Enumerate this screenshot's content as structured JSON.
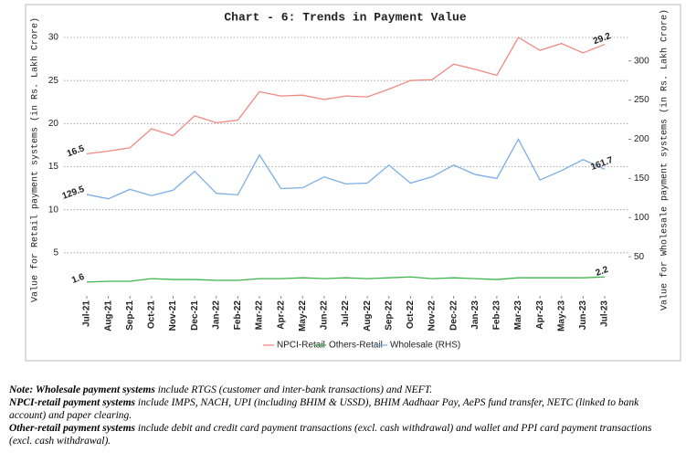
{
  "chart_data": {
    "type": "line",
    "title": "Chart - 6: Trends in Payment Value",
    "y_label": "Value for Retail payment systems (in Rs. Lakh Crore)",
    "y2_label": "Value for Wholesale payment systems (in Rs. Lakh Crore)",
    "categories": [
      "Jul-21",
      "Aug-21",
      "Sep-21",
      "Oct-21",
      "Nov-21",
      "Dec-21",
      "Jan-22",
      "Feb-22",
      "Mar-22",
      "Apr-22",
      "May-22",
      "Jun-22",
      "Jul-22",
      "Aug-22",
      "Sep-22",
      "Oct-22",
      "Nov-22",
      "Dec-22",
      "Jan-23",
      "Feb-23",
      "Mar-23",
      "Apr-23",
      "May-23",
      "Jun-23",
      "Jul-23"
    ],
    "series": [
      {
        "name": "NPCI-Retail",
        "color": "#f08a82",
        "values": [
          16.5,
          16.8,
          17.2,
          19.4,
          18.6,
          20.9,
          20.1,
          20.4,
          23.7,
          23.2,
          23.3,
          22.8,
          23.2,
          23.1,
          24.0,
          25.0,
          25.1,
          26.9,
          26.3,
          25.6,
          30.0,
          28.5,
          29.3,
          28.2,
          29.2
        ],
        "value_labels": [
          "16.5",
          null,
          null,
          null,
          null,
          null,
          null,
          null,
          null,
          null,
          null,
          null,
          null,
          null,
          null,
          null,
          null,
          null,
          null,
          null,
          null,
          null,
          null,
          null,
          "29.2"
        ]
      },
      {
        "name": "Others-Retail",
        "color": "#3cb64a",
        "values": [
          1.6,
          1.7,
          1.7,
          2.0,
          1.9,
          1.9,
          1.8,
          1.8,
          2.0,
          2.0,
          2.1,
          2.0,
          2.1,
          2.0,
          2.1,
          2.2,
          2.0,
          2.1,
          2.0,
          1.9,
          2.1,
          2.1,
          2.1,
          2.1,
          2.2
        ],
        "value_labels": [
          "1.6",
          null,
          null,
          null,
          null,
          null,
          null,
          null,
          null,
          null,
          null,
          null,
          null,
          null,
          null,
          null,
          null,
          null,
          null,
          null,
          null,
          null,
          null,
          null,
          "2.2"
        ]
      },
      {
        "name": "Wholesale (RHS)",
        "color": "#7aaee6",
        "axis": "y2",
        "values": [
          129.5,
          124,
          136,
          128,
          135,
          159,
          131,
          129,
          180,
          137,
          138,
          152,
          143,
          144,
          167,
          144,
          152,
          167,
          155,
          150,
          200,
          148,
          160,
          174,
          161.7
        ],
        "value_labels": [
          "129.5",
          null,
          null,
          null,
          null,
          null,
          null,
          null,
          null,
          null,
          null,
          null,
          null,
          null,
          null,
          null,
          null,
          null,
          null,
          null,
          null,
          null,
          null,
          null,
          "161.7"
        ]
      }
    ],
    "ylim": [
      0,
      30
    ],
    "yticks": [
      5,
      10,
      15,
      20,
      25,
      30
    ],
    "y2lim": [
      0,
      330
    ],
    "y2ticks": [
      50,
      100,
      150,
      200,
      250,
      300
    ],
    "grid": true,
    "legend": "bottom"
  },
  "notes": [
    {
      "lead": "Note: Wholesale payment systems",
      "text": " include RTGS (customer and inter-bank transactions) and NEFT."
    },
    {
      "lead": "NPCI-retail payment systems",
      "text": " include IMPS, NACH, UPI (including BHIM & USSD), BHIM Aadhaar Pay, AePS fund transfer, NETC (linked to bank account) and paper clearing."
    },
    {
      "lead": "Other-retail payment systems",
      "text": " include debit and credit card payment transactions (excl. cash withdrawal) and wallet and PPI card payment transactions (excl. cash withdrawal)."
    }
  ]
}
